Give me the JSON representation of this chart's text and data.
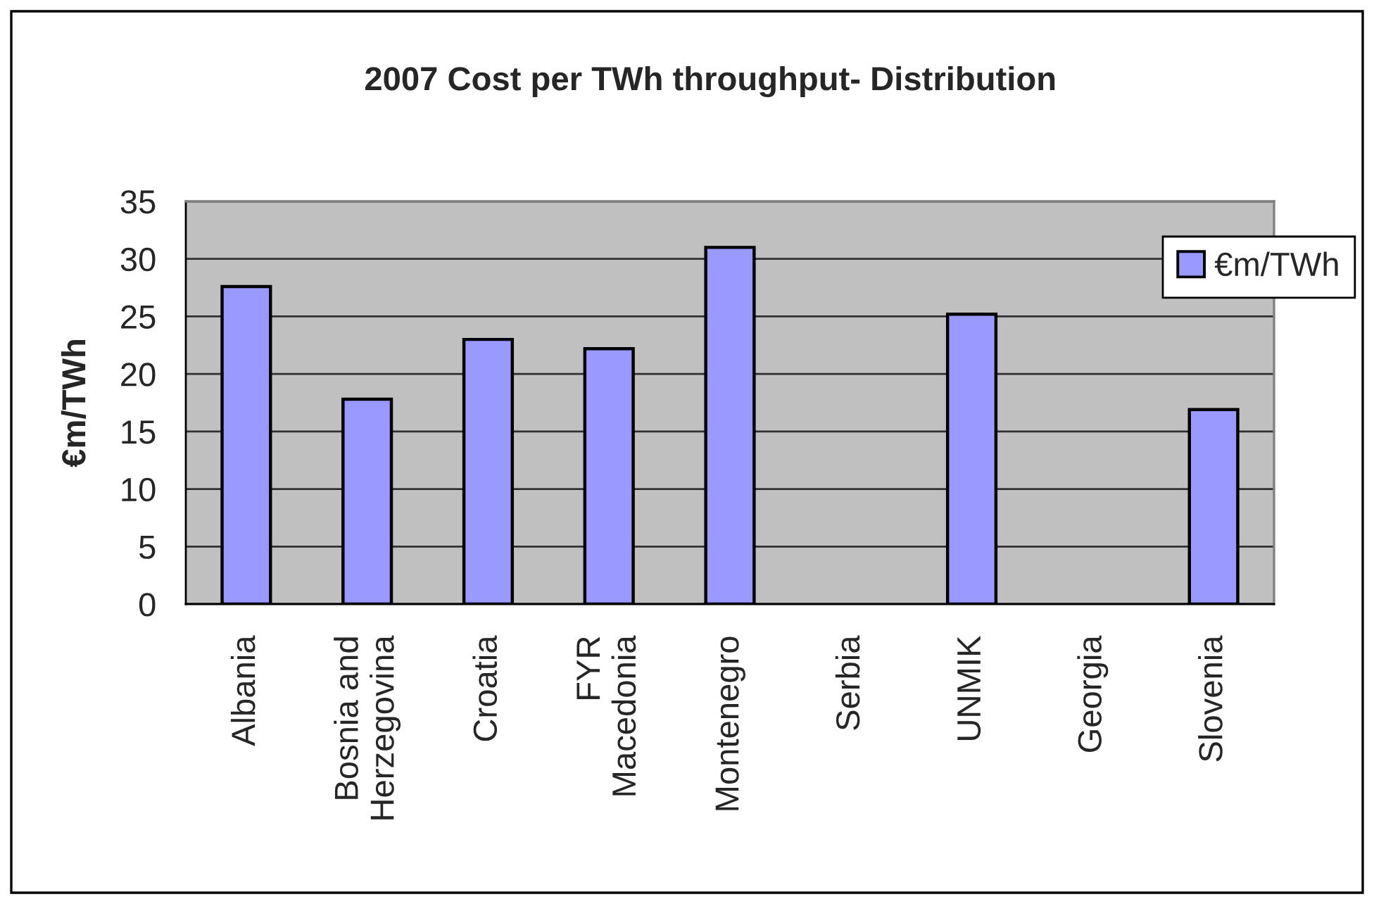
{
  "chart_data": {
    "type": "bar",
    "title": "2007 Cost per TWh throughput- Distribution",
    "ylabel": "€m/TWh",
    "categories": [
      "Albania",
      "Bosnia and\nHerzegovina",
      "Croatia",
      "FYR\nMacedonia",
      "Montenegro",
      "Serbia",
      "UNMIK",
      "Georgia",
      "Slovenia"
    ],
    "series": [
      {
        "name": "€m/TWh",
        "color": "#9999ff",
        "values": [
          27.6,
          17.8,
          23.0,
          22.2,
          31.0,
          null,
          25.2,
          null,
          16.9
        ]
      }
    ],
    "ylim": [
      0,
      35
    ],
    "yticks": [
      0,
      5,
      10,
      15,
      20,
      25,
      30,
      35
    ],
    "grid": "y",
    "legend": "right"
  }
}
